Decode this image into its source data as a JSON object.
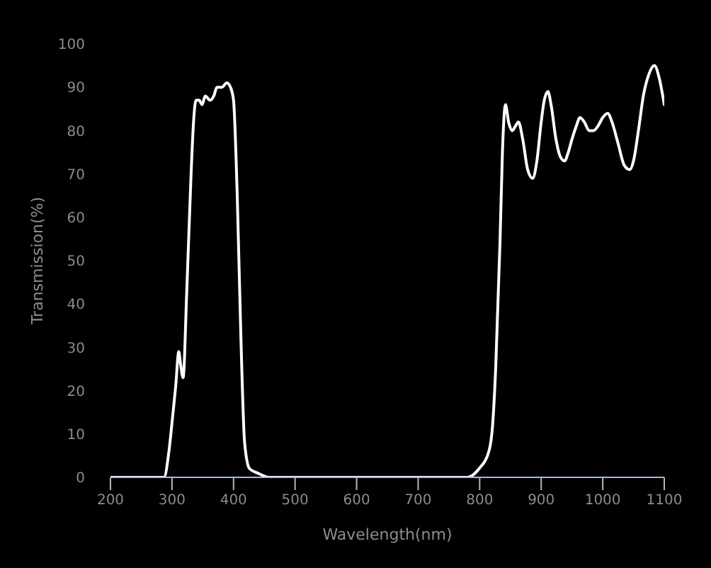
{
  "chart_data": {
    "type": "line",
    "xlabel": "Wavelength(nm)",
    "ylabel": "Transmission(%)",
    "x": [
      200,
      250,
      287,
      295,
      301,
      306,
      311,
      314,
      318,
      324,
      331,
      335,
      339,
      344,
      349,
      354,
      362,
      368,
      373,
      381,
      389,
      395,
      400,
      406,
      412,
      418,
      426,
      439,
      458,
      500,
      550,
      640,
      700,
      780,
      799,
      815,
      821,
      826,
      833,
      837,
      842,
      847,
      853,
      858,
      863,
      870,
      878,
      886,
      893,
      900,
      905,
      911,
      916,
      924,
      931,
      938,
      944,
      950,
      957,
      963,
      970,
      978,
      985,
      992,
      1000,
      1008,
      1015,
      1025,
      1035,
      1044,
      1050,
      1058,
      1066,
      1075,
      1084,
      1092,
      1100
    ],
    "series": [
      {
        "color": "#ffffff",
        "values": [
          0,
          0,
          0,
          6,
          14,
          21,
          29,
          26,
          23,
          43,
          70,
          82,
          87,
          87,
          86,
          88,
          87,
          88,
          90,
          90,
          91,
          90,
          87,
          65,
          32,
          8,
          2,
          1,
          0,
          0,
          0,
          0,
          0,
          0,
          2,
          6,
          12,
          25,
          54,
          75,
          86,
          82,
          80,
          81,
          82,
          78,
          71,
          69,
          73,
          82,
          87,
          89,
          86,
          78,
          74,
          73,
          75,
          78,
          81,
          83,
          82,
          80,
          80,
          81,
          83,
          84,
          82,
          77,
          72,
          71,
          73,
          80,
          88,
          93,
          95,
          92,
          86
        ]
      }
    ],
    "xlim": [
      200,
      1100
    ],
    "ylim": [
      0,
      100
    ],
    "xticks": [
      200,
      300,
      400,
      500,
      600,
      700,
      800,
      900,
      1000,
      1100
    ],
    "yticks": [
      0,
      10,
      20,
      30,
      40,
      50,
      60,
      70,
      80,
      90,
      100
    ],
    "marker": "none",
    "line_style": "solid"
  }
}
